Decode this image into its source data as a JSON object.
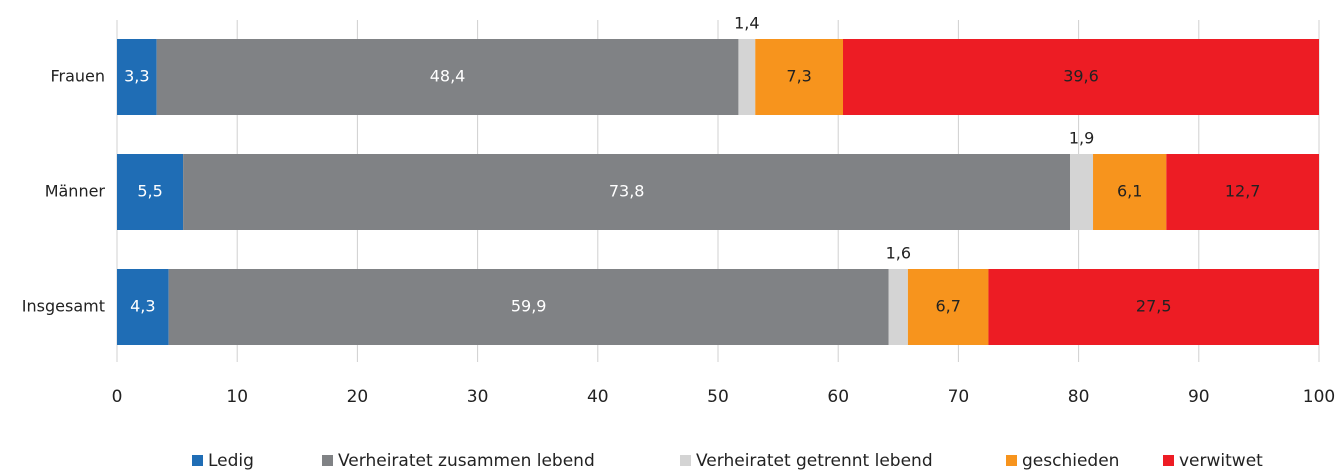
{
  "chart_data": {
    "type": "stacked_barh",
    "categories": [
      "Frauen",
      "Männer",
      "Insgesamt"
    ],
    "series": [
      {
        "name": "Ledig",
        "color": "#1f6db5",
        "label_color": "#ffffff",
        "values": [
          3.3,
          5.5,
          4.3
        ],
        "value_labels": [
          "3,3",
          "5,5",
          "4,3"
        ]
      },
      {
        "name": "Verheiratet zusammen lebend",
        "color": "#808285",
        "label_color": "#ffffff",
        "values": [
          48.4,
          73.8,
          59.9
        ],
        "value_labels": [
          "48,4",
          "73,8",
          "59,9"
        ]
      },
      {
        "name": "Verheiratet getrennt lebend",
        "color": "#d4d4d4",
        "label_color": "#222222",
        "values": [
          1.4,
          1.9,
          1.6
        ],
        "value_labels": [
          "1,4",
          "1,9",
          "1,6"
        ]
      },
      {
        "name": "geschieden",
        "color": "#f7941d",
        "label_color": "#222222",
        "values": [
          7.3,
          6.1,
          6.7
        ],
        "value_labels": [
          "7,3",
          "6,1",
          "6,7"
        ]
      },
      {
        "name": "verwitwet",
        "color": "#ed1c24",
        "label_color": "#222222",
        "values": [
          39.6,
          12.7,
          27.5
        ],
        "value_labels": [
          "39,6",
          "12,7",
          "27,5"
        ]
      }
    ],
    "xlim": [
      0,
      100
    ],
    "xticks": [
      0,
      10,
      20,
      30,
      40,
      50,
      60,
      70,
      80,
      90,
      100
    ],
    "grid": true,
    "legend": "bottom"
  }
}
